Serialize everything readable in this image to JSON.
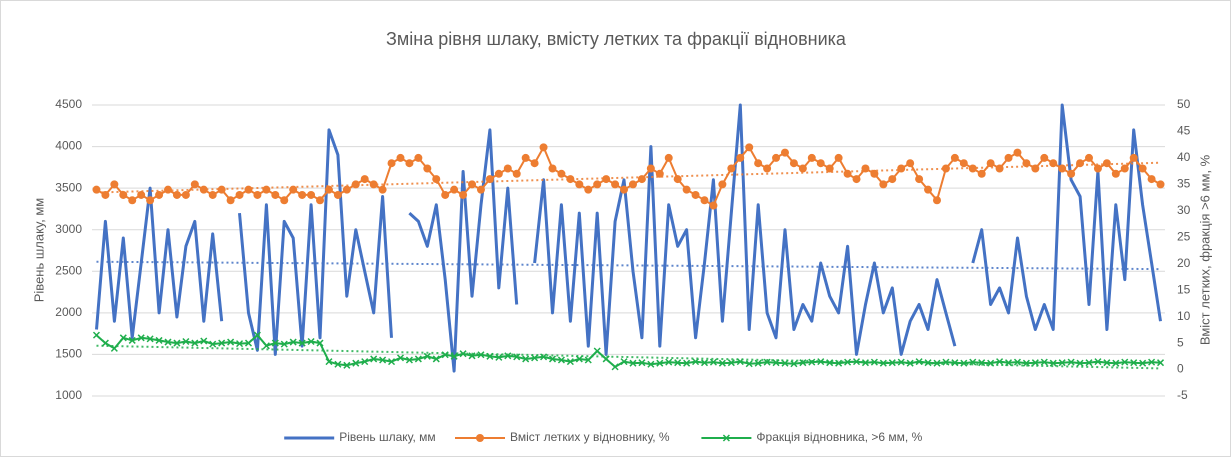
{
  "chart_data": {
    "type": "line",
    "title": "Зміна рівня шлаку, вмісту летких та фракції відновника",
    "y_label": "Рівень шлаку, мм",
    "y2_label": "Вміст летких, фракція >6 мм, %",
    "ylim": [
      1000,
      4500
    ],
    "yticks": [
      1000,
      1500,
      2000,
      2500,
      3000,
      3500,
      4000,
      4500
    ],
    "y2lim": [
      -5,
      50
    ],
    "y2ticks": [
      -5,
      0,
      5,
      10,
      15,
      20,
      25,
      30,
      35,
      40,
      45,
      50
    ],
    "grid": true,
    "trendlines": true,
    "legend": "bottom",
    "series": [
      {
        "name": "Рівень шлаку, мм",
        "color": "#4472c4",
        "marker": "none",
        "values": [
          1800,
          3100,
          1900,
          2900,
          1700,
          2600,
          3500,
          2000,
          3000,
          1950,
          2800,
          3100,
          1900,
          2950,
          1900,
          null,
          3200,
          2000,
          1550,
          3300,
          1500,
          3100,
          2900,
          1600,
          3300,
          1700,
          4200,
          3900,
          2200,
          3000,
          2500,
          2000,
          3400,
          1700,
          null,
          3200,
          3100,
          2800,
          3300,
          2400,
          1300,
          3700,
          2200,
          3300,
          4200,
          2300,
          3500,
          2100,
          null,
          2600,
          3600,
          2000,
          3300,
          1900,
          3200,
          1600,
          3200,
          1500,
          3100,
          3600,
          2500,
          1700,
          4000,
          1600,
          3300,
          2800,
          3000,
          1700,
          2600,
          3600,
          1900,
          3200,
          4500,
          1800,
          3300,
          2000,
          1700,
          3000,
          1800,
          2100,
          1900,
          2600,
          2200,
          2000,
          2800,
          1500,
          2100,
          2600,
          2000,
          2300,
          1500,
          1900,
          2100,
          1800,
          2400,
          2000,
          1600,
          null,
          2600,
          3000,
          2100,
          2300,
          2000,
          2900,
          2200,
          1800,
          2100,
          1800,
          4500,
          3600,
          3400,
          2100,
          3700,
          1800,
          3300,
          2400,
          4200,
          3300,
          2600,
          1900
        ]
      },
      {
        "name": "Вміст летких у відновнику, %",
        "color": "#ed7d31",
        "marker": "circle",
        "axis": "y2",
        "values": [
          34,
          33,
          35,
          33,
          32,
          33,
          32,
          33,
          34,
          33,
          33,
          35,
          34,
          33,
          34,
          32,
          33,
          34,
          33,
          34,
          33,
          32,
          34,
          33,
          33,
          32,
          34,
          33,
          34,
          35,
          36,
          35,
          34,
          39,
          40,
          39,
          40,
          38,
          36,
          33,
          34,
          33,
          35,
          34,
          36,
          37,
          38,
          37,
          40,
          39,
          42,
          38,
          37,
          36,
          35,
          34,
          35,
          36,
          35,
          34,
          35,
          36,
          38,
          37,
          40,
          36,
          34,
          33,
          32,
          31,
          35,
          38,
          40,
          42,
          39,
          38,
          40,
          41,
          39,
          38,
          40,
          39,
          38,
          40,
          37,
          36,
          38,
          37,
          35,
          36,
          38,
          39,
          36,
          34,
          32,
          38,
          40,
          39,
          38,
          37,
          39,
          38,
          40,
          41,
          39,
          38,
          40,
          39,
          38,
          37,
          39,
          40,
          38,
          39,
          37,
          38,
          40,
          38,
          36,
          35
        ]
      },
      {
        "name": "Фракція відновника, >6 мм, %",
        "color": "#1fae4c",
        "marker": "x",
        "axis": "y2",
        "values": [
          6.5,
          5,
          4,
          6,
          5.5,
          6,
          5.8,
          5.5,
          5.2,
          5,
          5.3,
          5,
          5.4,
          4.8,
          5,
          5.2,
          4.9,
          5,
          6.5,
          4.5,
          5,
          4.8,
          5.2,
          5,
          5.3,
          5,
          1.5,
          1,
          0.8,
          1.2,
          1.5,
          2,
          1.8,
          1.5,
          2.2,
          1.8,
          2,
          2.5,
          2,
          2.8,
          2.5,
          3,
          2.6,
          2.8,
          2.5,
          2.3,
          2.6,
          2.4,
          2,
          2.2,
          2.4,
          2,
          1.8,
          1.5,
          2,
          1.8,
          3.5,
          2,
          0.5,
          1.5,
          1.2,
          1.3,
          1,
          1.2,
          1.4,
          1.3,
          1.2,
          1.5,
          1.3,
          1.4,
          1.2,
          1.3,
          1.5,
          1.1,
          1.2,
          1.4,
          1.3,
          1.2,
          1.1,
          1.3,
          1.4,
          1.5,
          1.3,
          1.2,
          1.4,
          1.5,
          1.3,
          1.4,
          1.2,
          1.3,
          1.4,
          1.2,
          1.5,
          1.3,
          1.2,
          1.4,
          1.3,
          1.2,
          1.4,
          1.3,
          1.2,
          1.5,
          1.3,
          1.4,
          1.2,
          1.3,
          1.4,
          1.2,
          1.3,
          1.4,
          1.2,
          1.3,
          1.5,
          1.3,
          1.2,
          1.4,
          1.3,
          1.2,
          1.4,
          1.3
        ]
      }
    ]
  }
}
